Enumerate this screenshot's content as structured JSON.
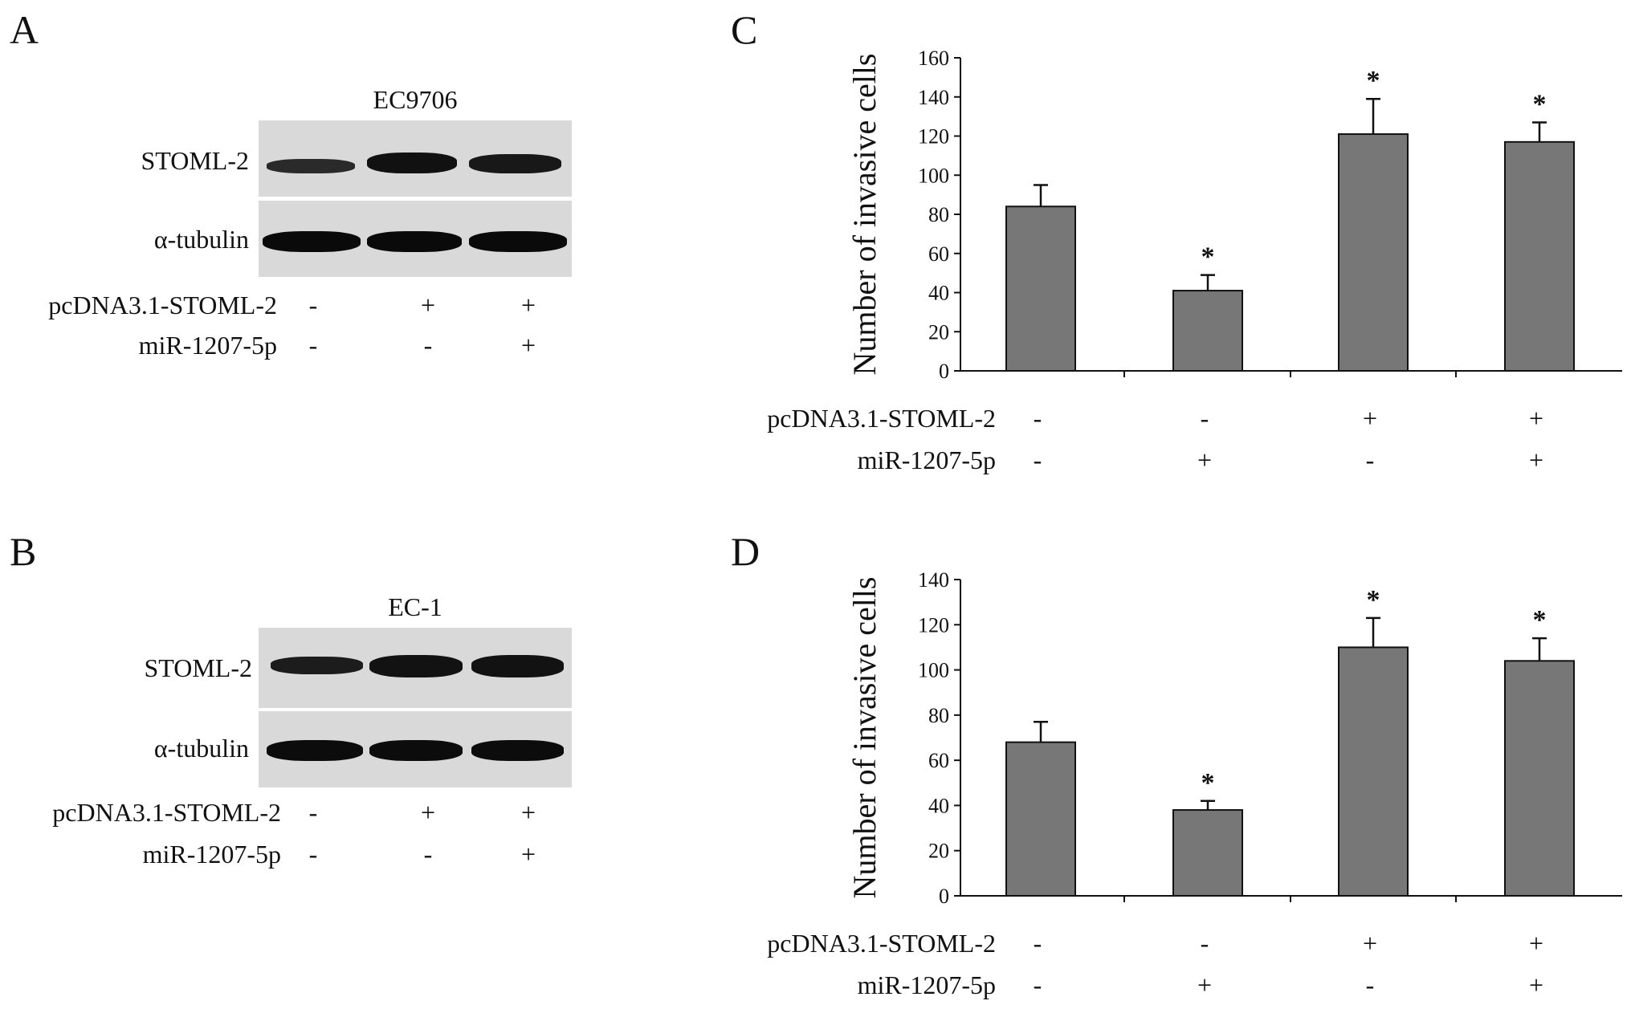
{
  "panels": {
    "A": "A",
    "B": "B",
    "C": "C",
    "D": "D"
  },
  "blots": [
    {
      "title": "EC9706",
      "rows": [
        "STOML-2",
        "α-tubulin"
      ],
      "conditions": [
        {
          "label": "pcDNA3.1-STOML-2",
          "signs": [
            "-",
            "+",
            "+"
          ]
        },
        {
          "label": "miR-1207-5p",
          "signs": [
            "-",
            "-",
            "+"
          ]
        }
      ]
    },
    {
      "title": "EC-1",
      "rows": [
        "STOML-2",
        "α-tubulin"
      ],
      "conditions": [
        {
          "label": "pcDNA3.1-STOML-2",
          "signs": [
            "-",
            "+",
            "+"
          ]
        },
        {
          "label": "miR-1207-5p",
          "signs": [
            "-",
            "-",
            "+"
          ]
        }
      ]
    }
  ],
  "chart_data": [
    {
      "type": "bar",
      "ylabel": "Number of invasive cells",
      "ylim": [
        0,
        160
      ],
      "yticks": [
        0,
        20,
        40,
        60,
        80,
        100,
        120,
        140,
        160
      ],
      "values": [
        84,
        41,
        121,
        117
      ],
      "errors": [
        11,
        8,
        18,
        10
      ],
      "significance": [
        "",
        "*",
        "*",
        "*"
      ],
      "conditions": [
        {
          "label": "pcDNA3.1-STOML-2",
          "signs": [
            "-",
            "-",
            "+",
            "+"
          ]
        },
        {
          "label": "miR-1207-5p",
          "signs": [
            "-",
            "+",
            "-",
            "+"
          ]
        }
      ],
      "bar_color": "#777777"
    },
    {
      "type": "bar",
      "ylabel": "Number of invasive cells",
      "ylim": [
        0,
        140
      ],
      "yticks": [
        0,
        20,
        40,
        60,
        80,
        100,
        120,
        140
      ],
      "values": [
        68,
        38,
        110,
        104
      ],
      "errors": [
        9,
        4,
        13,
        10
      ],
      "significance": [
        "",
        "*",
        "*",
        "*"
      ],
      "conditions": [
        {
          "label": "pcDNA3.1-STOML-2",
          "signs": [
            "-",
            "-",
            "+",
            "+"
          ]
        },
        {
          "label": "miR-1207-5p",
          "signs": [
            "-",
            "+",
            "-",
            "+"
          ]
        }
      ],
      "bar_color": "#777777"
    }
  ]
}
